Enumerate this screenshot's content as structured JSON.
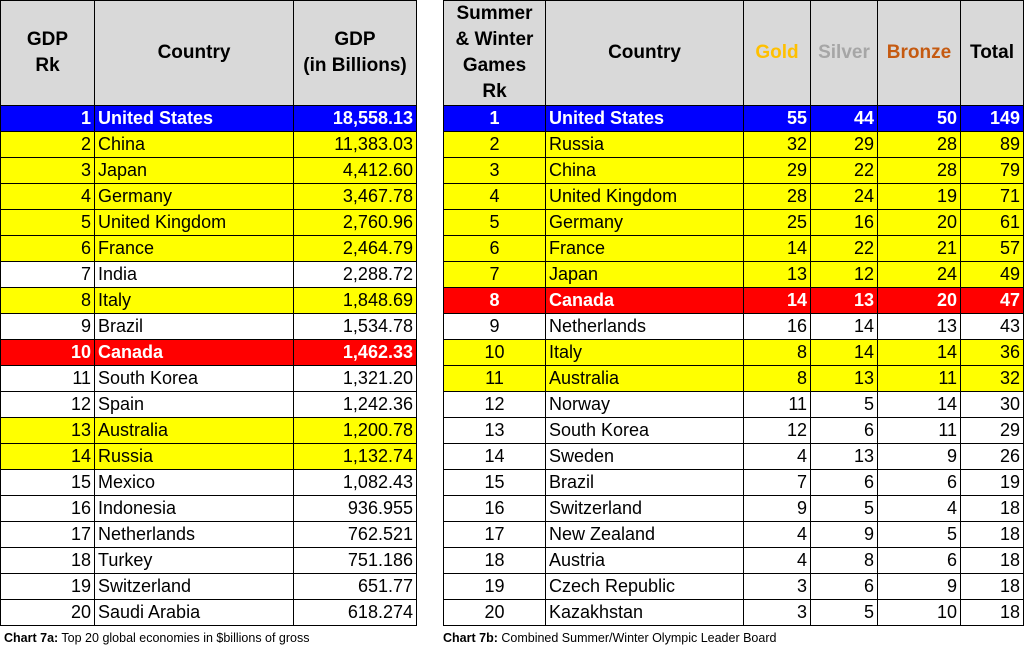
{
  "gdp_table": {
    "headers": {
      "rank": "GDP\nRk",
      "country": "Country",
      "gdp": "GDP\n(in Billions)"
    },
    "rows": [
      {
        "rank": "1",
        "country": "United States",
        "gdp": "18,558.13",
        "style": "blue"
      },
      {
        "rank": "2",
        "country": "China",
        "gdp": "11,383.03",
        "style": "yellow"
      },
      {
        "rank": "3",
        "country": "Japan",
        "gdp": "4,412.60",
        "style": "yellow"
      },
      {
        "rank": "4",
        "country": "Germany",
        "gdp": "3,467.78",
        "style": "yellow"
      },
      {
        "rank": "5",
        "country": "United Kingdom",
        "gdp": "2,760.96",
        "style": "yellow"
      },
      {
        "rank": "6",
        "country": "France",
        "gdp": "2,464.79",
        "style": "yellow"
      },
      {
        "rank": "7",
        "country": "India",
        "gdp": "2,288.72",
        "style": "white"
      },
      {
        "rank": "8",
        "country": "Italy",
        "gdp": "1,848.69",
        "style": "yellow"
      },
      {
        "rank": "9",
        "country": "Brazil",
        "gdp": "1,534.78",
        "style": "white"
      },
      {
        "rank": "10",
        "country": "Canada",
        "gdp": "1,462.33",
        "style": "red"
      },
      {
        "rank": "11",
        "country": "South Korea",
        "gdp": "1,321.20",
        "style": "white"
      },
      {
        "rank": "12",
        "country": "Spain",
        "gdp": "1,242.36",
        "style": "white"
      },
      {
        "rank": "13",
        "country": "Australia",
        "gdp": "1,200.78",
        "style": "yellow"
      },
      {
        "rank": "14",
        "country": "Russia",
        "gdp": "1,132.74",
        "style": "yellow"
      },
      {
        "rank": "15",
        "country": "Mexico",
        "gdp": "1,082.43",
        "style": "white"
      },
      {
        "rank": "16",
        "country": "Indonesia",
        "gdp": "936.955",
        "style": "white"
      },
      {
        "rank": "17",
        "country": "Netherlands",
        "gdp": "762.521",
        "style": "white"
      },
      {
        "rank": "18",
        "country": "Turkey",
        "gdp": "751.186",
        "style": "white"
      },
      {
        "rank": "19",
        "country": "Switzerland",
        "gdp": "651.77",
        "style": "white"
      },
      {
        "rank": "20",
        "country": "Saudi Arabia",
        "gdp": "618.274",
        "style": "white"
      }
    ],
    "caption_bold": "Chart 7a:",
    "caption_text": " Top 20 global economies in $billions of gross"
  },
  "medal_table": {
    "headers": {
      "rank": "Summer\n& Winter\nGames\nRk",
      "country": "Country",
      "gold": "Gold",
      "silver": "Silver",
      "bronze": "Bronze",
      "total": "Total"
    },
    "header_colors": {
      "gold": "#ffc000",
      "silver": "#a6a6a6",
      "bronze": "#c55a11"
    },
    "rows": [
      {
        "rank": "1",
        "country": "United States",
        "gold": "55",
        "silver": "44",
        "bronze": "50",
        "total": "149",
        "style": "blue"
      },
      {
        "rank": "2",
        "country": "Russia",
        "gold": "32",
        "silver": "29",
        "bronze": "28",
        "total": "89",
        "style": "yellow"
      },
      {
        "rank": "3",
        "country": "China",
        "gold": "29",
        "silver": "22",
        "bronze": "28",
        "total": "79",
        "style": "yellow"
      },
      {
        "rank": "4",
        "country": "United Kingdom",
        "gold": "28",
        "silver": "24",
        "bronze": "19",
        "total": "71",
        "style": "yellow"
      },
      {
        "rank": "5",
        "country": "Germany",
        "gold": "25",
        "silver": "16",
        "bronze": "20",
        "total": "61",
        "style": "yellow"
      },
      {
        "rank": "6",
        "country": "France",
        "gold": "14",
        "silver": "22",
        "bronze": "21",
        "total": "57",
        "style": "yellow"
      },
      {
        "rank": "7",
        "country": "Japan",
        "gold": "13",
        "silver": "12",
        "bronze": "24",
        "total": "49",
        "style": "yellow"
      },
      {
        "rank": "8",
        "country": "Canada",
        "gold": "14",
        "silver": "13",
        "bronze": "20",
        "total": "47",
        "style": "red"
      },
      {
        "rank": "9",
        "country": "Netherlands",
        "gold": "16",
        "silver": "14",
        "bronze": "13",
        "total": "43",
        "style": "white"
      },
      {
        "rank": "10",
        "country": "Italy",
        "gold": "8",
        "silver": "14",
        "bronze": "14",
        "total": "36",
        "style": "yellow"
      },
      {
        "rank": "11",
        "country": "Australia",
        "gold": "8",
        "silver": "13",
        "bronze": "11",
        "total": "32",
        "style": "yellow"
      },
      {
        "rank": "12",
        "country": "Norway",
        "gold": "11",
        "silver": "5",
        "bronze": "14",
        "total": "30",
        "style": "white"
      },
      {
        "rank": "13",
        "country": "South Korea",
        "gold": "12",
        "silver": "6",
        "bronze": "11",
        "total": "29",
        "style": "white"
      },
      {
        "rank": "14",
        "country": "Sweden",
        "gold": "4",
        "silver": "13",
        "bronze": "9",
        "total": "26",
        "style": "white"
      },
      {
        "rank": "15",
        "country": "Brazil",
        "gold": "7",
        "silver": "6",
        "bronze": "6",
        "total": "19",
        "style": "white"
      },
      {
        "rank": "16",
        "country": "Switzerland",
        "gold": "9",
        "silver": "5",
        "bronze": "4",
        "total": "18",
        "style": "white"
      },
      {
        "rank": "17",
        "country": "New Zealand",
        "gold": "4",
        "silver": "9",
        "bronze": "5",
        "total": "18",
        "style": "white"
      },
      {
        "rank": "18",
        "country": "Austria",
        "gold": "4",
        "silver": "8",
        "bronze": "6",
        "total": "18",
        "style": "white"
      },
      {
        "rank": "19",
        "country": "Czech Republic",
        "gold": "3",
        "silver": "6",
        "bronze": "9",
        "total": "18",
        "style": "white"
      },
      {
        "rank": "20",
        "country": "Kazakhstan",
        "gold": "3",
        "silver": "5",
        "bronze": "10",
        "total": "18",
        "style": "white"
      }
    ],
    "caption_bold": "Chart 7b:",
    "caption_text": " Combined Summer/Winter Olympic Leader Board"
  },
  "row_colors": {
    "blue": "#0000ff",
    "yellow": "#ffff00",
    "red": "#ff0000",
    "white": "#ffffff",
    "header": "#d9d9d9"
  }
}
